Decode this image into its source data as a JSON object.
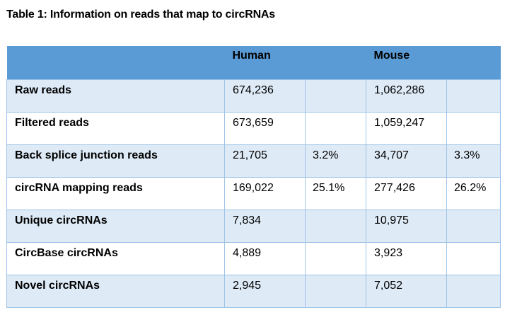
{
  "title": "Table 1: Information on reads that map to circRNAs",
  "colors": {
    "header_bg": "#5b9bd5",
    "band_bg": "#deeaf6",
    "border": "#9dc3e6"
  },
  "table": {
    "headers": [
      "",
      "Human",
      "",
      "Mouse",
      ""
    ],
    "rows": [
      [
        "Raw reads",
        "674,236",
        "",
        "1,062,286",
        ""
      ],
      [
        "Filtered reads",
        "673,659",
        "",
        "1,059,247",
        ""
      ],
      [
        "Back splice junction reads",
        "21,705",
        "3.2%",
        "34,707",
        "3.3%"
      ],
      [
        "circRNA mapping reads",
        "169,022",
        "25.1%",
        "277,426",
        "26.2%"
      ],
      [
        "Unique circRNAs",
        "7,834",
        "",
        "10,975",
        ""
      ],
      [
        "CircBase circRNAs",
        "4,889",
        "",
        "3,923",
        ""
      ],
      [
        "Novel circRNAs",
        "2,945",
        "",
        "7,052",
        ""
      ]
    ]
  }
}
